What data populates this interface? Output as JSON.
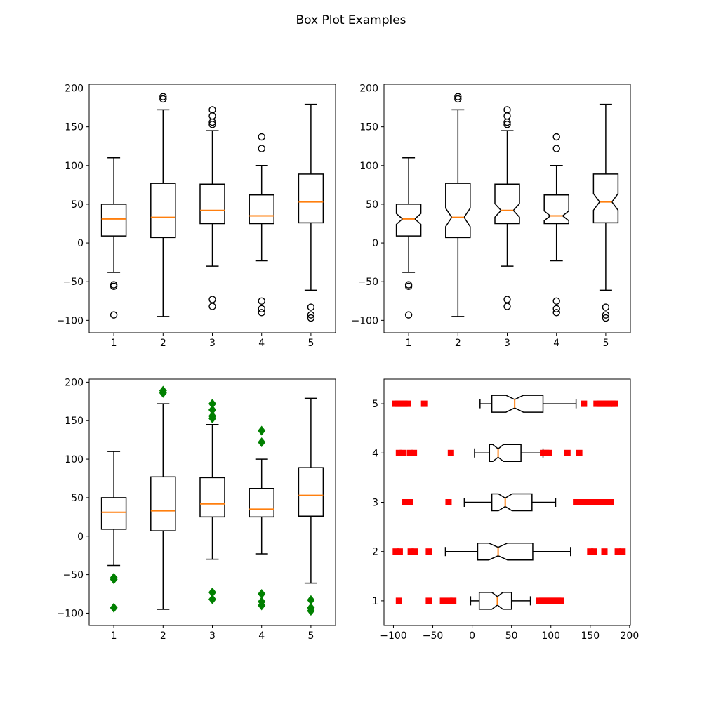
{
  "title": "Box Plot Examples",
  "style": {
    "background": "#ffffff",
    "box_stroke": "#000000",
    "median_color": "#ff7f0e",
    "diamond_color": "#008000",
    "square_color": "#ff0000"
  },
  "chart_data": [
    {
      "id": "top-left",
      "type": "boxplot",
      "orientation": "vertical",
      "notched": false,
      "flier": {
        "marker": "circle",
        "color": "#000000",
        "filled": false
      },
      "categories": [
        "1",
        "2",
        "3",
        "4",
        "5"
      ],
      "value_ticks": [
        -100,
        -50,
        0,
        50,
        100,
        150,
        200
      ],
      "value_tick_labels": [
        "−100",
        "−50",
        "0",
        "50",
        "100",
        "150",
        "200"
      ],
      "value_lim": [
        -116,
        205
      ],
      "cat_lim": [
        0.5,
        5.5
      ],
      "grid": false,
      "boxes": [
        {
          "whislo": -38,
          "q1": 9,
          "med": 31,
          "q3": 50,
          "whishi": 110,
          "fliers_low": [
            -54,
            -56,
            -93
          ],
          "fliers_high": []
        },
        {
          "whislo": -95,
          "q1": 7,
          "med": 33,
          "q3": 77,
          "whishi": 172,
          "fliers_low": [],
          "fliers_high": [
            186,
            189
          ]
        },
        {
          "whislo": -30,
          "q1": 25,
          "med": 42,
          "q3": 76,
          "whishi": 145,
          "fliers_low": [
            -73,
            -82
          ],
          "fliers_high": [
            153,
            156,
            164,
            172
          ]
        },
        {
          "whislo": -23,
          "q1": 25,
          "med": 35,
          "q3": 62,
          "whishi": 100,
          "fliers_low": [
            -75,
            -85,
            -90
          ],
          "fliers_high": [
            122,
            137
          ]
        },
        {
          "whislo": -61,
          "q1": 26,
          "med": 53,
          "q3": 89,
          "whishi": 179,
          "fliers_low": [
            -83,
            -93,
            -97
          ],
          "fliers_high": []
        }
      ]
    },
    {
      "id": "top-right",
      "type": "boxplot",
      "orientation": "vertical",
      "notched": true,
      "flier": {
        "marker": "circle",
        "color": "#000000",
        "filled": false
      },
      "categories": [
        "1",
        "2",
        "3",
        "4",
        "5"
      ],
      "value_ticks": [
        -100,
        -50,
        0,
        50,
        100,
        150,
        200
      ],
      "value_tick_labels": [
        "−100",
        "−50",
        "0",
        "50",
        "100",
        "150",
        "200"
      ],
      "value_lim": [
        -116,
        205
      ],
      "cat_lim": [
        0.5,
        5.5
      ],
      "grid": false,
      "boxes": [
        {
          "whislo": -38,
          "q1": 9,
          "med": 31,
          "q3": 50,
          "whishi": 110,
          "fliers_low": [
            -54,
            -56,
            -93
          ],
          "fliers_high": []
        },
        {
          "whislo": -95,
          "q1": 7,
          "med": 33,
          "q3": 77,
          "whishi": 172,
          "fliers_low": [],
          "fliers_high": [
            186,
            189
          ]
        },
        {
          "whislo": -30,
          "q1": 25,
          "med": 42,
          "q3": 76,
          "whishi": 145,
          "fliers_low": [
            -73,
            -82
          ],
          "fliers_high": [
            153,
            156,
            164,
            172
          ]
        },
        {
          "whislo": -23,
          "q1": 25,
          "med": 35,
          "q3": 62,
          "whishi": 100,
          "fliers_low": [
            -75,
            -85,
            -90
          ],
          "fliers_high": [
            122,
            137
          ]
        },
        {
          "whislo": -61,
          "q1": 26,
          "med": 53,
          "q3": 89,
          "whishi": 179,
          "fliers_low": [
            -83,
            -93,
            -97
          ],
          "fliers_high": []
        }
      ]
    },
    {
      "id": "bottom-left",
      "type": "boxplot",
      "orientation": "vertical",
      "notched": false,
      "flier": {
        "marker": "diamond",
        "color": "#008000",
        "filled": true
      },
      "categories": [
        "1",
        "2",
        "3",
        "4",
        "5"
      ],
      "value_ticks": [
        -100,
        -50,
        0,
        50,
        100,
        150,
        200
      ],
      "value_tick_labels": [
        "−100",
        "−50",
        "0",
        "50",
        "100",
        "150",
        "200"
      ],
      "value_lim": [
        -116,
        204
      ],
      "cat_lim": [
        0.5,
        5.5
      ],
      "grid": false,
      "boxes": [
        {
          "whislo": -38,
          "q1": 9,
          "med": 31,
          "q3": 50,
          "whishi": 110,
          "fliers_low": [
            -54,
            -56,
            -93
          ],
          "fliers_high": []
        },
        {
          "whislo": -95,
          "q1": 7,
          "med": 33,
          "q3": 77,
          "whishi": 172,
          "fliers_low": [],
          "fliers_high": [
            186,
            189
          ]
        },
        {
          "whislo": -30,
          "q1": 25,
          "med": 42,
          "q3": 76,
          "whishi": 145,
          "fliers_low": [
            -73,
            -82
          ],
          "fliers_high": [
            153,
            156,
            164,
            172
          ]
        },
        {
          "whislo": -23,
          "q1": 25,
          "med": 35,
          "q3": 62,
          "whishi": 100,
          "fliers_low": [
            -75,
            -85,
            -90
          ],
          "fliers_high": [
            122,
            137
          ]
        },
        {
          "whislo": -61,
          "q1": 26,
          "med": 53,
          "q3": 89,
          "whishi": 179,
          "fliers_low": [
            -83,
            -93,
            -97
          ],
          "fliers_high": []
        }
      ]
    },
    {
      "id": "bottom-right",
      "type": "boxplot",
      "orientation": "horizontal",
      "notched": true,
      "flier": {
        "marker": "square",
        "color": "#ff0000",
        "filled": true
      },
      "categories": [
        "1",
        "2",
        "3",
        "4",
        "5"
      ],
      "value_ticks": [
        -100,
        -50,
        0,
        50,
        100,
        150,
        200
      ],
      "value_tick_labels": [
        "−100",
        "−50",
        "0",
        "50",
        "100",
        "150",
        "200"
      ],
      "value_lim": [
        -112,
        201
      ],
      "cat_lim": [
        0.5,
        5.5
      ],
      "grid": false,
      "boxes": [
        {
          "whislo": -2,
          "q1": 9,
          "med": 32,
          "q3": 50,
          "whishi": 74,
          "fliers_low": [
            -93,
            -55,
            -37,
            -29,
            -24
          ],
          "fliers_high": [
            85,
            89,
            93,
            97,
            101,
            105,
            109,
            113
          ]
        },
        {
          "whislo": -34,
          "q1": 7,
          "med": 33,
          "q3": 77,
          "whishi": 125,
          "fliers_low": [
            -97,
            -92,
            -78,
            -73,
            -55
          ],
          "fliers_high": [
            150,
            155,
            168,
            185,
            191
          ]
        },
        {
          "whislo": -10,
          "q1": 25,
          "med": 42,
          "q3": 76,
          "whishi": 106,
          "fliers_low": [
            -85,
            -79,
            -30
          ],
          "fliers_high": [
            132,
            136,
            140,
            144,
            148,
            152,
            156,
            160,
            164,
            168,
            176
          ]
        },
        {
          "whislo": 3,
          "q1": 22,
          "med": 33,
          "q3": 62,
          "whishi": 90,
          "fliers_low": [
            -93,
            -88,
            -79,
            -74,
            -27
          ],
          "fliers_high": [
            90,
            94,
            98,
            121,
            136
          ]
        },
        {
          "whislo": 10,
          "q1": 25,
          "med": 54,
          "q3": 90,
          "whishi": 132,
          "fliers_low": [
            -98,
            -94,
            -90,
            -86,
            -82,
            -61
          ],
          "fliers_high": [
            142,
            158,
            162,
            166,
            170,
            174,
            178,
            181
          ]
        }
      ]
    }
  ]
}
